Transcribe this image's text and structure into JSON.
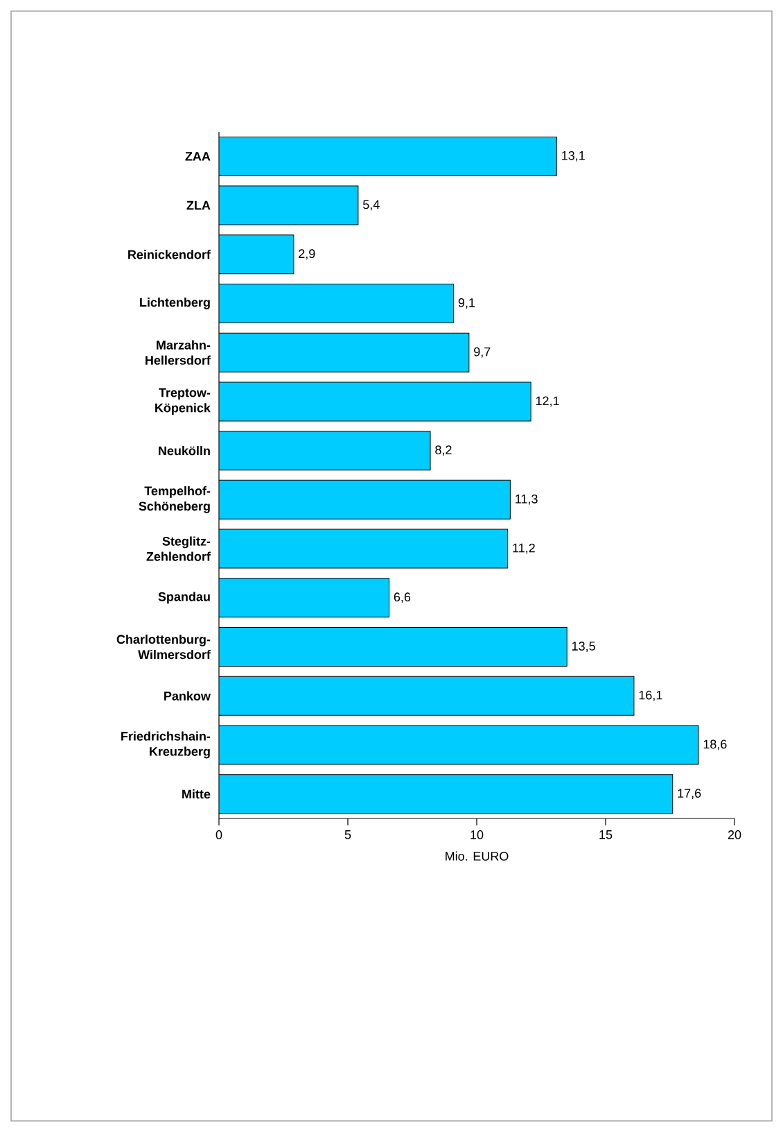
{
  "chart_data": {
    "type": "bar",
    "orientation": "horizontal",
    "xlabel": "Mio. EURO",
    "categories": [
      "ZAA",
      "ZLA",
      "Reinickendorf",
      "Lichtenberg",
      "Marzahn-Hellersdorf",
      "Treptow-Köpenick",
      "Neukölln",
      "Tempelhof-Schöneberg",
      "Steglitz-Zehlendorf",
      "Spandau",
      "Charlottenburg-Wilmersdorf",
      "Pankow",
      "Friedrichshain-Kreuzberg",
      "Mitte"
    ],
    "values": [
      13.1,
      5.4,
      2.9,
      9.1,
      9.7,
      12.1,
      8.2,
      11.3,
      11.2,
      6.6,
      13.5,
      16.1,
      18.6,
      17.6
    ],
    "value_labels": [
      "13,1",
      "5,4",
      "2,9",
      "9,1",
      "9,7",
      "12,1",
      "8,2",
      "11,3",
      "11,2",
      "6,6",
      "13,5",
      "16,1",
      "18,6",
      "17,6"
    ],
    "color": "#00ccff",
    "xlim": [
      0,
      20
    ],
    "xticks": [
      0,
      5,
      10,
      15,
      20
    ],
    "grid": false
  }
}
